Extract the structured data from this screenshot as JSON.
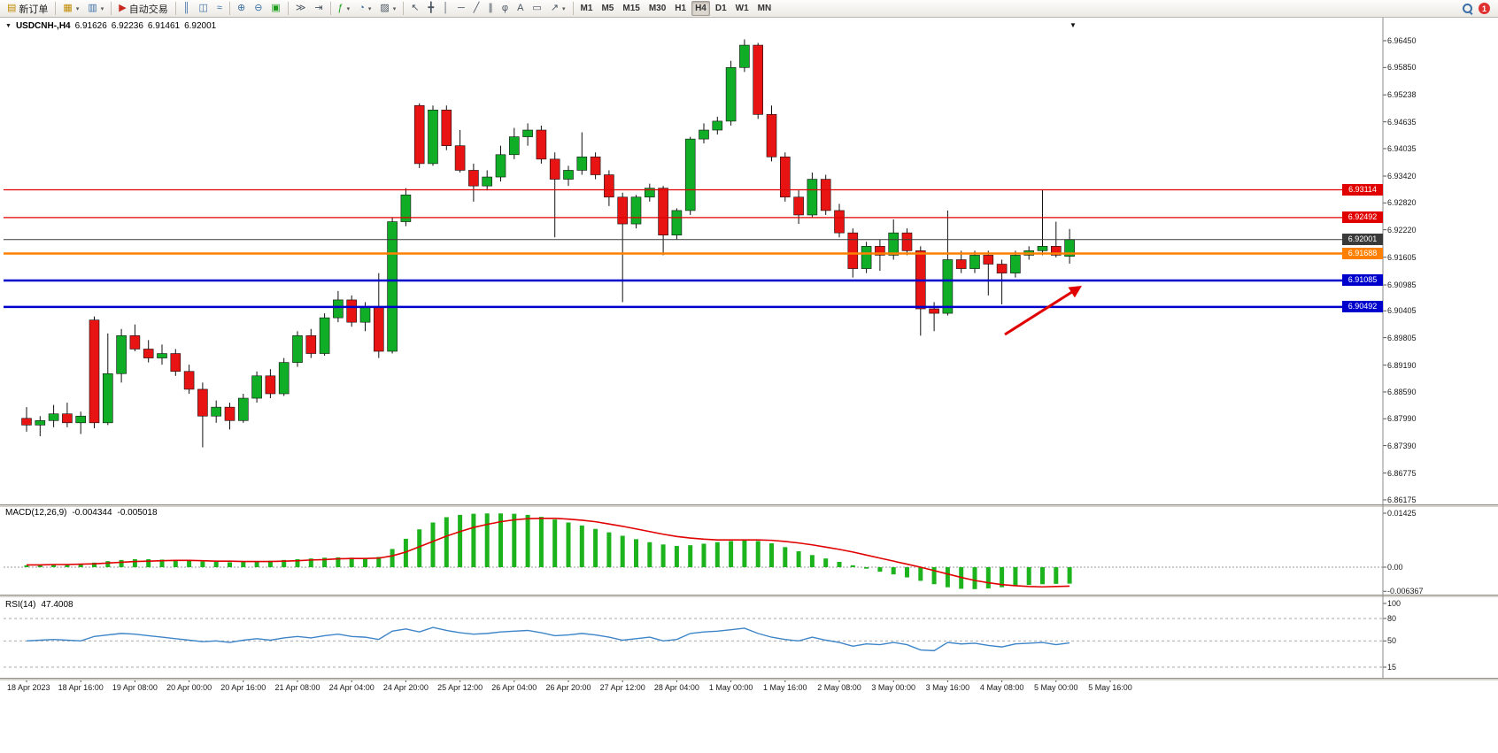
{
  "toolbar": {
    "new_order": "新订单",
    "auto_trading": "自动交易",
    "timeframes": [
      "M1",
      "M5",
      "M15",
      "M30",
      "H1",
      "H4",
      "D1",
      "W1",
      "MN"
    ],
    "active_timeframe": "H4",
    "notification_badge": "1",
    "icons": {
      "new_order": "▤",
      "new_chart": "▦",
      "profiles": "▥",
      "auto_trading": "▶",
      "bars_mode": "║",
      "candles_mode": "◫",
      "line_mode": "≈",
      "zoom_in": "⊕",
      "zoom_out": "⊖",
      "tile_windows": "▣",
      "auto_scroll": "≫",
      "chart_shift": "⇥",
      "indicators": "ƒ",
      "periods": "◔",
      "templates": "▨",
      "cursor": "↖",
      "crosshair": "╋",
      "vline": "│",
      "hline": "─",
      "trendline": "╱",
      "channel": "∥",
      "fibonacci": "φ",
      "text": "A",
      "label": "▭",
      "shapes": "↗",
      "dropdown": "▾",
      "scroll_end": "▼",
      "info_dropdown": "▼"
    }
  },
  "chart": {
    "info": {
      "symbol_period": "USDCNH-,H4",
      "open": "6.91626",
      "high": "6.92236",
      "low": "6.91461",
      "close": "6.92001"
    },
    "price_axis_labels": [
      "6.96450",
      "6.95850",
      "6.95238",
      "6.94635",
      "6.94035",
      "6.93420",
      "6.92820",
      "6.92220",
      "6.91605",
      "6.90985",
      "6.90405",
      "6.89805",
      "6.89190",
      "6.88590",
      "6.87990",
      "6.87390",
      "6.86775",
      "6.86175"
    ],
    "levels": [
      {
        "value": 6.93114,
        "label": "6.93114",
        "color": "#e00000",
        "width": 1.2
      },
      {
        "value": 6.92492,
        "label": "6.92492",
        "color": "#e00000",
        "width": 1.2
      },
      {
        "value": 6.92001,
        "label": "6.92001",
        "color": "#3a3a3a",
        "width": 1
      },
      {
        "value": 6.91688,
        "label": "6.91688",
        "color": "#ff8000",
        "width": 2.5
      },
      {
        "value": 6.91085,
        "label": "6.91085",
        "color": "#0000cd",
        "width": 2.5
      },
      {
        "value": 6.90492,
        "label": "6.90492",
        "color": "#0000cd",
        "width": 2.5
      }
    ]
  },
  "annotation": {
    "type": "arrow",
    "color": "#e00000"
  },
  "colors": {
    "bull": "#0fae26",
    "bear": "#e81414",
    "macd_hist": "#1db31d",
    "macd_signal": "#e00000",
    "rsi_line": "#3d85c8",
    "level_red": "#e00000",
    "level_blue": "#0000cd",
    "level_orange": "#ff8000",
    "current_price": "#3a3a3a"
  },
  "chart_data": {
    "type": "candlestick",
    "symbol": "USDCNH",
    "period": "H4",
    "ylim": [
      6.86175,
      6.9645
    ],
    "x_labels": [
      "18 Apr 2023",
      "18 Apr 16:00",
      "19 Apr 08:00",
      "20 Apr 00:00",
      "20 Apr 16:00",
      "21 Apr 08:00",
      "24 Apr 04:00",
      "24 Apr 20:00",
      "25 Apr 12:00",
      "26 Apr 04:00",
      "26 Apr 20:00",
      "27 Apr 12:00",
      "28 Apr 04:00",
      "1 May 00:00",
      "1 May 16:00",
      "2 May 08:00",
      "3 May 00:00",
      "3 May 16:00",
      "4 May 08:00",
      "5 May 00:00",
      "5 May 16:00"
    ],
    "candles": [
      [
        6.88,
        6.8825,
        6.877,
        6.8785
      ],
      [
        6.8785,
        6.8805,
        6.876,
        6.8795
      ],
      [
        6.8795,
        6.883,
        6.878,
        6.881
      ],
      [
        6.881,
        6.8835,
        6.878,
        6.879
      ],
      [
        6.879,
        6.8815,
        6.8765,
        6.8805
      ],
      [
        6.902,
        6.9028,
        6.8778,
        6.879
      ],
      [
        6.879,
        6.899,
        6.8785,
        6.89
      ],
      [
        6.89,
        6.9,
        6.888,
        6.8985
      ],
      [
        6.8985,
        6.901,
        6.895,
        6.8955
      ],
      [
        6.8955,
        6.8975,
        6.8925,
        6.8935
      ],
      [
        6.8935,
        6.8965,
        6.892,
        6.8945
      ],
      [
        6.8945,
        6.8955,
        6.8895,
        6.8905
      ],
      [
        6.8905,
        6.892,
        6.8855,
        6.8865
      ],
      [
        6.8865,
        6.888,
        6.8735,
        6.8805
      ],
      [
        6.8805,
        6.884,
        6.879,
        6.8825
      ],
      [
        6.8825,
        6.8835,
        6.8775,
        6.8795
      ],
      [
        6.8795,
        6.8855,
        6.879,
        6.8845
      ],
      [
        6.8845,
        6.8905,
        6.8835,
        6.8895
      ],
      [
        6.8895,
        6.891,
        6.8845,
        6.8855
      ],
      [
        6.8855,
        6.8935,
        6.885,
        6.8925
      ],
      [
        6.8925,
        6.8995,
        6.8915,
        6.8985
      ],
      [
        6.8985,
        6.9,
        6.8935,
        6.8945
      ],
      [
        6.8945,
        6.9035,
        6.894,
        6.9025
      ],
      [
        6.9025,
        6.9085,
        6.9015,
        6.9065
      ],
      [
        6.9065,
        6.9075,
        6.9005,
        6.9015
      ],
      [
        6.9015,
        6.906,
        6.8995,
        6.905
      ],
      [
        6.905,
        6.9125,
        6.8935,
        6.895
      ],
      [
        6.895,
        6.925,
        6.8945,
        6.924
      ],
      [
        6.924,
        6.9315,
        6.923,
        6.93
      ],
      [
        6.95,
        6.9505,
        6.936,
        6.937
      ],
      [
        6.937,
        6.95,
        6.9365,
        6.949
      ],
      [
        6.949,
        6.95,
        6.94,
        6.941
      ],
      [
        6.941,
        6.9445,
        6.935,
        6.9355
      ],
      [
        6.9355,
        6.937,
        6.9285,
        6.932
      ],
      [
        6.932,
        6.9355,
        6.931,
        6.934
      ],
      [
        6.934,
        6.941,
        6.933,
        6.939
      ],
      [
        6.939,
        6.945,
        6.938,
        6.943
      ],
      [
        6.943,
        6.946,
        6.941,
        6.9445
      ],
      [
        6.9445,
        6.9455,
        6.937,
        6.938
      ],
      [
        6.938,
        6.9395,
        6.9205,
        6.9335
      ],
      [
        6.9335,
        6.9365,
        6.932,
        6.9355
      ],
      [
        6.9355,
        6.944,
        6.9345,
        6.9385
      ],
      [
        6.9385,
        6.9395,
        6.9335,
        6.9345
      ],
      [
        6.9345,
        6.9355,
        6.9275,
        6.9295
      ],
      [
        6.9295,
        6.9305,
        6.906,
        6.9235
      ],
      [
        6.9235,
        6.93,
        6.9225,
        6.9295
      ],
      [
        6.9295,
        6.9325,
        6.9285,
        6.9315
      ],
      [
        6.9315,
        6.932,
        6.9165,
        6.921
      ],
      [
        6.921,
        6.927,
        6.92,
        6.9265
      ],
      [
        6.9265,
        6.943,
        6.9255,
        6.9425
      ],
      [
        6.9425,
        6.946,
        6.9415,
        6.9445
      ],
      [
        6.9445,
        6.9475,
        6.9435,
        6.9465
      ],
      [
        6.9465,
        6.96,
        6.9455,
        6.9585
      ],
      [
        6.9585,
        6.9648,
        6.9575,
        6.9635
      ],
      [
        6.9635,
        6.964,
        6.947,
        6.948
      ],
      [
        6.948,
        6.95,
        6.9375,
        6.9385
      ],
      [
        6.9385,
        6.9395,
        6.9285,
        6.9295
      ],
      [
        6.9295,
        6.931,
        6.9235,
        6.9255
      ],
      [
        6.9255,
        6.935,
        6.925,
        6.9335
      ],
      [
        6.9335,
        6.9345,
        6.9255,
        6.9265
      ],
      [
        6.9265,
        6.928,
        6.9205,
        6.9215
      ],
      [
        6.9215,
        6.9225,
        6.9115,
        6.9135
      ],
      [
        6.9135,
        6.9195,
        6.9125,
        6.9185
      ],
      [
        6.9185,
        6.92,
        6.913,
        6.9165
      ],
      [
        6.9165,
        6.9245,
        6.9155,
        6.9215
      ],
      [
        6.9215,
        6.9225,
        6.9165,
        6.9175
      ],
      [
        6.9175,
        6.9185,
        6.8985,
        6.9045
      ],
      [
        6.9045,
        6.906,
        6.8995,
        6.9035
      ],
      [
        6.9035,
        6.9265,
        6.903,
        6.9155
      ],
      [
        6.9155,
        6.9175,
        6.9125,
        6.9135
      ],
      [
        6.9135,
        6.9175,
        6.9125,
        6.9165
      ],
      [
        6.9165,
        6.9175,
        6.9075,
        6.9145
      ],
      [
        6.9145,
        6.9155,
        6.9055,
        6.9125
      ],
      [
        6.9125,
        6.9175,
        6.9115,
        6.9165
      ],
      [
        6.9165,
        6.9185,
        6.9155,
        6.9175
      ],
      [
        6.9175,
        6.9312,
        6.9165,
        6.9185
      ],
      [
        6.9185,
        6.924,
        6.916,
        6.9165
      ],
      [
        6.91626,
        6.92236,
        6.91461,
        6.92001
      ]
    ],
    "indicators": [
      {
        "type": "macd",
        "title": "MACD(12,26,9)",
        "macd_value": "-0.004344",
        "signal_value": "-0.005018",
        "axis_labels": [
          "0.01425",
          "0.00",
          "-0.006367"
        ],
        "axis_values": [
          0.01425,
          0,
          -0.006367
        ],
        "histogram": [
          0.0005,
          0.0006,
          0.0007,
          0.0008,
          0.0009,
          0.0012,
          0.0016,
          0.0019,
          0.0021,
          0.0021,
          0.002,
          0.0019,
          0.0017,
          0.0015,
          0.0014,
          0.0013,
          0.0014,
          0.0015,
          0.0017,
          0.0019,
          0.0021,
          0.0023,
          0.0025,
          0.0026,
          0.0025,
          0.0024,
          0.0027,
          0.0048,
          0.0075,
          0.01,
          0.0118,
          0.0132,
          0.0138,
          0.0141,
          0.0142,
          0.0142,
          0.0141,
          0.0138,
          0.0133,
          0.0126,
          0.0118,
          0.011,
          0.0101,
          0.0092,
          0.0083,
          0.0074,
          0.0066,
          0.006,
          0.0056,
          0.0058,
          0.0062,
          0.0066,
          0.0069,
          0.0071,
          0.0069,
          0.0063,
          0.0053,
          0.0042,
          0.0032,
          0.0023,
          0.0014,
          0.0005,
          -0.0004,
          -0.0012,
          -0.0019,
          -0.0027,
          -0.0036,
          -0.0045,
          -0.0053,
          -0.0057,
          -0.0058,
          -0.0056,
          -0.0053,
          -0.005,
          -0.0047,
          -0.0045,
          -0.0044,
          -0.004344
        ],
        "signal": [
          0.0006,
          0.0006,
          0.0007,
          0.0007,
          0.0008,
          0.0009,
          0.0011,
          0.0013,
          0.0015,
          0.0016,
          0.0017,
          0.0018,
          0.0018,
          0.0017,
          0.0016,
          0.0016,
          0.0015,
          0.0015,
          0.0015,
          0.0016,
          0.0017,
          0.0019,
          0.002,
          0.0022,
          0.0023,
          0.0023,
          0.0024,
          0.003,
          0.004,
          0.0054,
          0.0068,
          0.0082,
          0.0094,
          0.0105,
          0.0113,
          0.012,
          0.0125,
          0.0128,
          0.0129,
          0.0129,
          0.0127,
          0.0124,
          0.012,
          0.0114,
          0.0108,
          0.0101,
          0.0094,
          0.0087,
          0.0081,
          0.0077,
          0.0074,
          0.0072,
          0.0072,
          0.0072,
          0.0072,
          0.0071,
          0.0068,
          0.0064,
          0.0059,
          0.0053,
          0.0047,
          0.004,
          0.0032,
          0.0024,
          0.0016,
          0.0008,
          0.0,
          -0.0009,
          -0.0018,
          -0.0027,
          -0.0035,
          -0.0041,
          -0.0046,
          -0.0049,
          -0.0051,
          -0.0052,
          -0.0051,
          -0.005018
        ]
      },
      {
        "type": "rsi",
        "title": "RSI(14)",
        "value": "47.4008",
        "axis_labels": [
          "100",
          "80",
          "50",
          "15"
        ],
        "axis_values": [
          100,
          80,
          50,
          15
        ],
        "levels": [
          80,
          50,
          15
        ],
        "series": [
          50,
          51,
          52,
          51,
          50,
          56,
          58,
          60,
          59,
          57,
          55,
          53,
          51,
          49,
          50,
          48,
          51,
          53,
          51,
          54,
          56,
          54,
          57,
          59,
          56,
          55,
          52,
          63,
          66,
          62,
          68,
          64,
          61,
          59,
          60,
          62,
          63,
          64,
          61,
          57,
          58,
          60,
          58,
          55,
          51,
          53,
          55,
          50,
          52,
          60,
          62,
          63,
          65,
          67,
          60,
          55,
          52,
          50,
          55,
          51,
          48,
          43,
          46,
          45,
          48,
          45,
          38,
          37,
          48,
          46,
          47,
          44,
          42,
          46,
          47,
          48,
          45,
          47.4
        ]
      }
    ]
  }
}
